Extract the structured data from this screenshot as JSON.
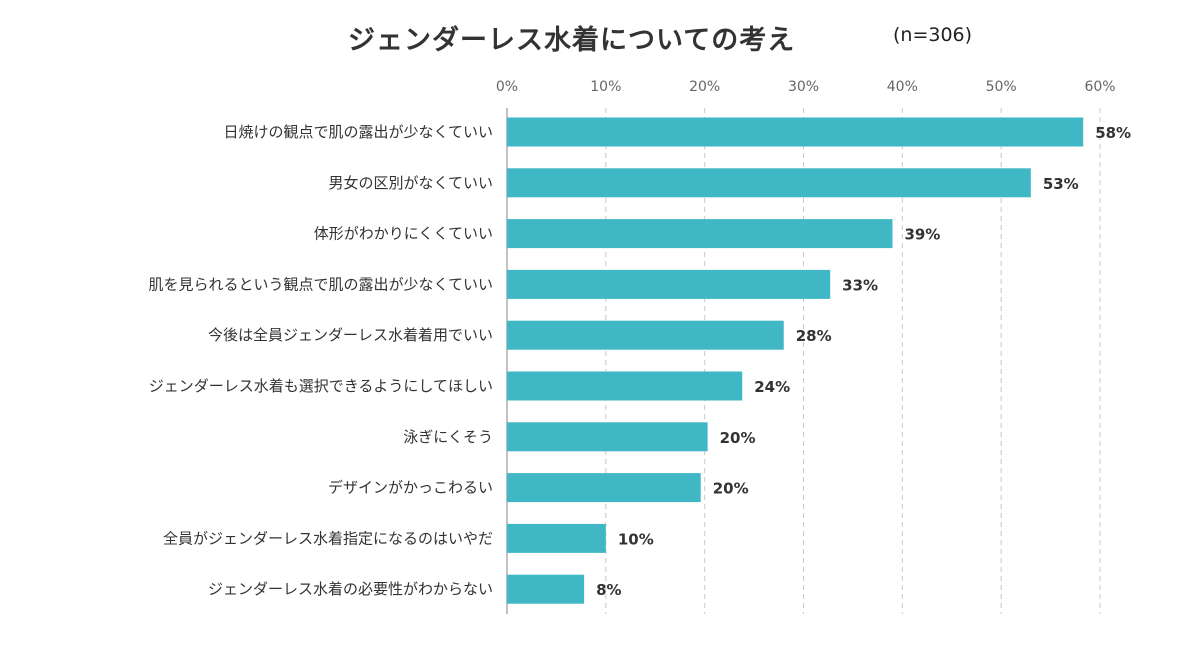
{
  "header": {
    "title": "ジェンダーレス水着についての考え",
    "sample_size": "(n=306)"
  },
  "colors": {
    "bar": "#3fb7c4",
    "grid": "#c8c8c8",
    "text": "#333333"
  },
  "chart_data": {
    "type": "bar",
    "orientation": "horizontal",
    "title": "ジェンダーレス水着についての考え",
    "subtitle": "(n=306)",
    "xlabel": "",
    "ylabel": "",
    "xlim": [
      0,
      60
    ],
    "x_ticks": [
      "0%",
      "10%",
      "20%",
      "30%",
      "40%",
      "50%",
      "60%"
    ],
    "x_axis_position": "top",
    "grid": "vertical dashed",
    "categories": [
      "日焼けの観点で肌の露出が少なくていい",
      "男女の区別がなくていい",
      "体形がわかりにくくていい",
      "肌を見られるという観点で肌の露出が少なくていい",
      "今後は全員ジェンダーレス水着着用でいい",
      "ジェンダーレス水着も選択できるようにしてほしい",
      "泳ぎにくそう",
      "デザインがかっこわるい",
      "全員がジェンダーレス水着指定になるのはいやだ",
      "ジェンダーレス水着の必要性がわからない"
    ],
    "values": [
      58.3,
      53,
      39,
      32.7,
      28,
      23.8,
      20.3,
      19.6,
      10,
      7.8
    ],
    "data_labels": [
      "58%",
      "53%",
      "39%",
      "33%",
      "28%",
      "24%",
      "20%",
      "20%",
      "10%",
      "8%"
    ]
  }
}
